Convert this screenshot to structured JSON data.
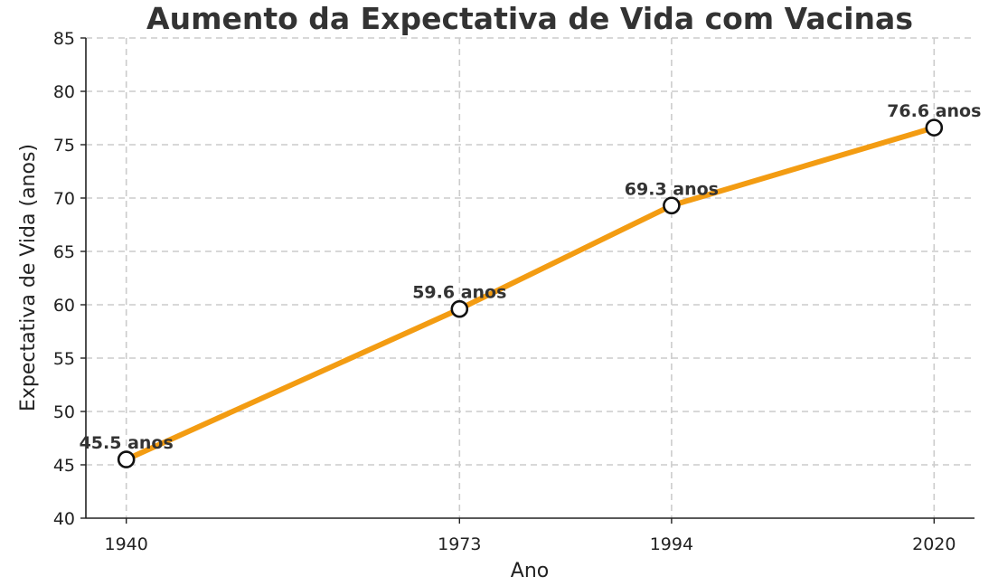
{
  "chart_data": {
    "type": "line",
    "title": "Aumento da Expectativa de Vida com Vacinas",
    "xlabel": "Ano",
    "ylabel": "Expectativa de Vida (anos)",
    "x": [
      1940,
      1973,
      1994,
      2020
    ],
    "x_tick_labels": [
      "1940",
      "1973",
      "1994",
      "2020"
    ],
    "series": [
      {
        "values": [
          45.5,
          59.6,
          69.3,
          76.6
        ]
      }
    ],
    "data_labels": [
      "45.5 anos",
      "59.6 anos",
      "69.3 anos",
      "76.6 anos"
    ],
    "xlim": [
      1936,
      2024
    ],
    "ylim": [
      40,
      85
    ],
    "y_ticks": [
      40,
      45,
      50,
      55,
      60,
      65,
      70,
      75,
      80,
      85
    ],
    "grid": true,
    "line_color": "#f39c12",
    "marker_fill": "#ffffff",
    "marker_edge": "#111111"
  }
}
